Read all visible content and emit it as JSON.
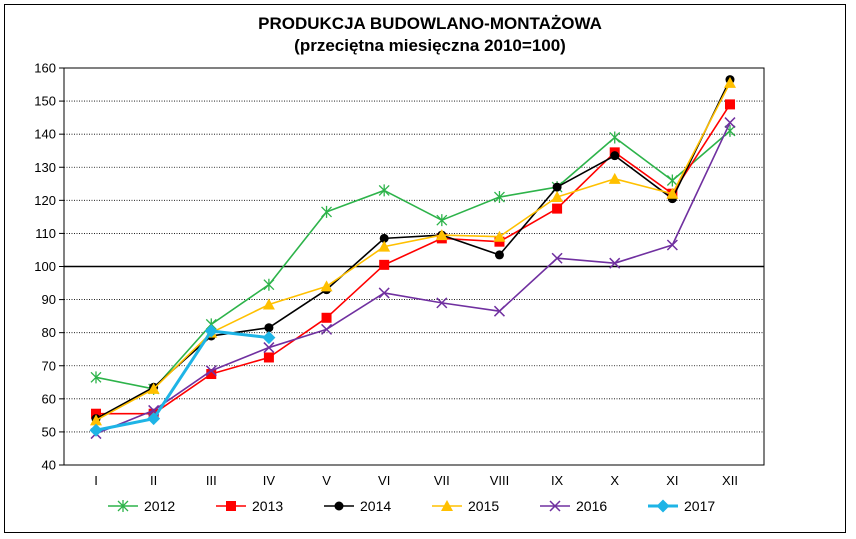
{
  "chart_data": {
    "type": "line",
    "title": "PRODUKCJA BUDOWLANO-MONTAŻOWA",
    "subtitle": "(przeciętna miesięczna 2010=100)",
    "xlabel": "",
    "ylabel": "",
    "categories": [
      "I",
      "II",
      "III",
      "IV",
      "V",
      "VI",
      "VII",
      "VIII",
      "IX",
      "X",
      "XI",
      "XII"
    ],
    "ylim": [
      40,
      160
    ],
    "yticks": [
      40,
      50,
      60,
      70,
      80,
      90,
      100,
      110,
      120,
      130,
      140,
      150,
      160
    ],
    "reference_line": 100,
    "grid": "horizontal",
    "legend_position": "bottom",
    "series": [
      {
        "name": "2012",
        "color": "#2db34a",
        "marker": "asterisk",
        "values": [
          66.5,
          63,
          82.5,
          94.5,
          116.5,
          123,
          114,
          121,
          124,
          139,
          126,
          141
        ]
      },
      {
        "name": "2013",
        "color": "#ff0000",
        "marker": "square",
        "values": [
          55.5,
          55.5,
          67.5,
          72.5,
          84.5,
          100.5,
          108.5,
          107.5,
          117.5,
          134.5,
          122,
          149
        ]
      },
      {
        "name": "2014",
        "color": "#000000",
        "marker": "circle",
        "values": [
          54,
          63.5,
          79,
          81.5,
          93,
          108.5,
          109.5,
          103.5,
          124,
          133.5,
          120.5,
          156.5
        ]
      },
      {
        "name": "2015",
        "color": "#ffc000",
        "marker": "triangle",
        "values": [
          53.5,
          63,
          80,
          88.5,
          94,
          106,
          109.5,
          109,
          121,
          126.5,
          122,
          155.5
        ]
      },
      {
        "name": "2016",
        "color": "#7030a0",
        "marker": "x",
        "values": [
          49.5,
          56.5,
          68.5,
          75.5,
          81,
          92,
          89,
          86.5,
          102.5,
          101,
          106.5,
          143.5
        ]
      },
      {
        "name": "2017",
        "color": "#1eb4e6",
        "marker": "diamond",
        "values": [
          50.5,
          54,
          80.5,
          78.5,
          null,
          null,
          null,
          null,
          null,
          null,
          null,
          null
        ]
      }
    ]
  }
}
